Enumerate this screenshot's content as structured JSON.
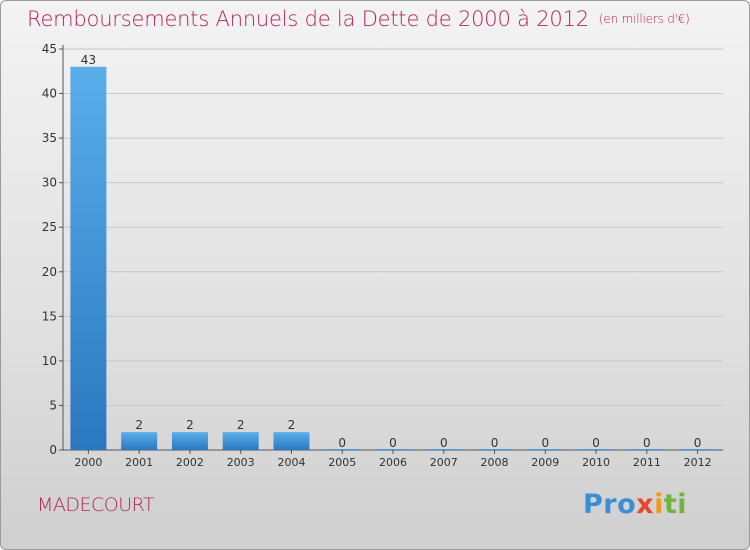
{
  "title": "Remboursements Annuels de la Dette de 2000 à 2012",
  "unit_note": "(en milliers d'€)",
  "city": "MADECOURT",
  "logo": {
    "parts": [
      "Pro",
      "x",
      "i",
      "ti"
    ]
  },
  "colors": {
    "title": "#b4245a",
    "bar": "#4a9be0",
    "bar_dark": "#2a78c0",
    "grid": "#c8c8c8"
  },
  "chart_data": {
    "type": "bar",
    "title": "Remboursements Annuels de la Dette de 2000 à 2012",
    "xlabel": "",
    "ylabel": "",
    "categories": [
      "2000",
      "2001",
      "2002",
      "2003",
      "2004",
      "2005",
      "2006",
      "2007",
      "2008",
      "2009",
      "2010",
      "2011",
      "2012"
    ],
    "values": [
      43,
      2,
      2,
      2,
      2,
      0,
      0,
      0,
      0,
      0,
      0,
      0,
      0
    ],
    "data_labels": [
      "43",
      "2",
      "2",
      "2",
      "2",
      "0",
      "0",
      "0",
      "0",
      "0",
      "0",
      "0",
      "0"
    ],
    "ylim": [
      0,
      45
    ],
    "yticks": [
      0,
      5,
      10,
      15,
      20,
      25,
      30,
      35,
      40,
      45
    ],
    "grid": true
  }
}
